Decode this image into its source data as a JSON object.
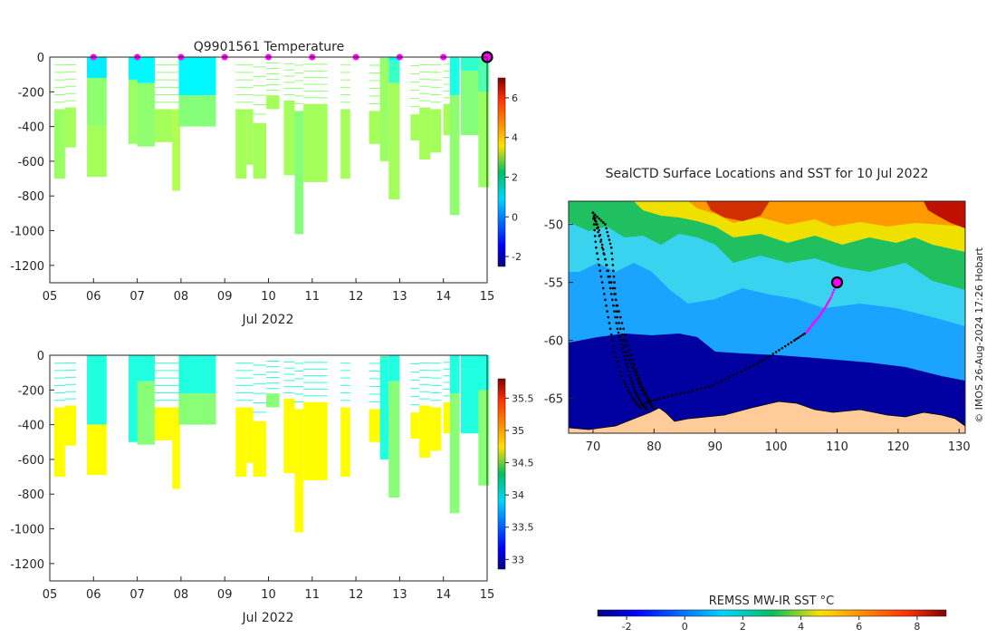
{
  "chart_data": [
    {
      "id": "temperature",
      "type": "heatmap",
      "title": "Q9901561  Temperature",
      "xlabel": "Jul 2022",
      "xticks": [
        "05",
        "06",
        "07",
        "08",
        "09",
        "10",
        "11",
        "12",
        "13",
        "14",
        "15"
      ],
      "xlim": [
        5,
        15
      ],
      "ylim": [
        -1300,
        0
      ],
      "yticks": [
        0,
        -200,
        -400,
        -600,
        -800,
        -1000,
        -1200
      ],
      "colorbar": {
        "min": -2.5,
        "max": 7,
        "ticks": [
          -2,
          0,
          2,
          4,
          6
        ]
      },
      "surface_markers_day": [
        6,
        7,
        8,
        9,
        10,
        11,
        12,
        13,
        14
      ],
      "latest_marker_day": 15,
      "profiles": [
        {
          "day": 5.1,
          "width": 0.25,
          "max_depth": 700,
          "layers": [
            [
              0,
              300,
              null
            ],
            [
              300,
              700,
              2.5
            ]
          ]
        },
        {
          "day": 5.35,
          "width": 0.25,
          "max_depth": 520,
          "layers": [
            [
              0,
              290,
              null
            ],
            [
              290,
              520,
              2.6
            ]
          ]
        },
        {
          "day": 5.85,
          "width": 0.45,
          "max_depth": 690,
          "layers": [
            [
              0,
              120,
              0.9
            ],
            [
              120,
              400,
              2.4
            ],
            [
              400,
              690,
              2.6
            ]
          ]
        },
        {
          "day": 6.8,
          "width": 0.28,
          "max_depth": 500,
          "layers": [
            [
              0,
              130,
              1.0
            ],
            [
              130,
              500,
              2.5
            ]
          ]
        },
        {
          "day": 7.0,
          "width": 0.4,
          "max_depth": 515,
          "layers": [
            [
              0,
              150,
              1.0
            ],
            [
              150,
              515,
              2.4
            ]
          ]
        },
        {
          "day": 7.4,
          "width": 0.4,
          "max_depth": 490,
          "layers": [
            [
              0,
              300,
              null
            ],
            [
              300,
              490,
              2.6
            ]
          ]
        },
        {
          "day": 7.8,
          "width": 0.18,
          "max_depth": 770,
          "layers": [
            [
              0,
              300,
              null
            ],
            [
              300,
              770,
              2.7
            ]
          ]
        },
        {
          "day": 7.95,
          "width": 0.85,
          "max_depth": 400,
          "layers": [
            [
              0,
              220,
              1.0
            ],
            [
              220,
              400,
              2.3
            ]
          ]
        },
        {
          "day": 9.25,
          "width": 0.25,
          "max_depth": 700,
          "layers": [
            [
              0,
              300,
              null
            ],
            [
              300,
              700,
              2.6
            ]
          ]
        },
        {
          "day": 9.5,
          "width": 0.15,
          "max_depth": 620,
          "layers": [
            [
              0,
              300,
              null
            ],
            [
              300,
              620,
              2.6
            ]
          ]
        },
        {
          "day": 9.65,
          "width": 0.3,
          "max_depth": 700,
          "layers": [
            [
              0,
              380,
              null
            ],
            [
              380,
              700,
              2.6
            ]
          ]
        },
        {
          "day": 9.95,
          "width": 0.3,
          "max_depth": 300,
          "layers": [
            [
              0,
              220,
              null
            ],
            [
              220,
              300,
              2.6
            ]
          ]
        },
        {
          "day": 10.35,
          "width": 0.25,
          "max_depth": 680,
          "layers": [
            [
              0,
              250,
              null
            ],
            [
              250,
              680,
              2.6
            ]
          ]
        },
        {
          "day": 10.6,
          "width": 0.2,
          "max_depth": 1020,
          "layers": [
            [
              0,
              310,
              null
            ],
            [
              310,
              1020,
              2.3
            ]
          ]
        },
        {
          "day": 10.8,
          "width": 0.55,
          "max_depth": 720,
          "layers": [
            [
              0,
              270,
              null
            ],
            [
              270,
              720,
              2.6
            ]
          ]
        },
        {
          "day": 11.65,
          "width": 0.22,
          "max_depth": 700,
          "layers": [
            [
              0,
              300,
              null
            ],
            [
              300,
              700,
              2.6
            ]
          ]
        },
        {
          "day": 12.3,
          "width": 0.28,
          "max_depth": 500,
          "layers": [
            [
              0,
              310,
              null
            ],
            [
              310,
              500,
              2.6
            ]
          ]
        },
        {
          "day": 12.55,
          "width": 0.2,
          "max_depth": 600,
          "layers": [
            [
              0,
              30,
              null
            ],
            [
              30,
              600,
              2.5
            ]
          ]
        },
        {
          "day": 12.75,
          "width": 0.25,
          "max_depth": 820,
          "layers": [
            [
              0,
              20,
              1.0
            ],
            [
              20,
              150,
              1.6
            ],
            [
              150,
              820,
              2.6
            ]
          ]
        },
        {
          "day": 13.25,
          "width": 0.2,
          "max_depth": 480,
          "layers": [
            [
              0,
              330,
              null
            ],
            [
              330,
              480,
              2.6
            ]
          ]
        },
        {
          "day": 13.45,
          "width": 0.25,
          "max_depth": 590,
          "layers": [
            [
              0,
              290,
              null
            ],
            [
              290,
              590,
              2.6
            ]
          ]
        },
        {
          "day": 13.7,
          "width": 0.25,
          "max_depth": 550,
          "layers": [
            [
              0,
              300,
              null
            ],
            [
              300,
              550,
              2.6
            ]
          ]
        },
        {
          "day": 14.0,
          "width": 0.3,
          "max_depth": 450,
          "layers": [
            [
              0,
              270,
              null
            ],
            [
              270,
              450,
              2.6
            ]
          ]
        },
        {
          "day": 14.15,
          "width": 0.22,
          "max_depth": 910,
          "layers": [
            [
              0,
              220,
              1.3
            ],
            [
              220,
              910,
              2.4
            ]
          ]
        },
        {
          "day": 14.4,
          "width": 0.6,
          "max_depth": 450,
          "layers": [
            [
              0,
              80,
              1.5
            ],
            [
              80,
              450,
              2.3
            ]
          ]
        },
        {
          "day": 14.8,
          "width": 0.25,
          "max_depth": 750,
          "layers": [
            [
              0,
              200,
              1.8
            ],
            [
              200,
              750,
              2.5
            ]
          ]
        }
      ]
    },
    {
      "id": "salinity",
      "type": "heatmap",
      "title": "",
      "xlabel": "Jul 2022",
      "xticks": [
        "05",
        "06",
        "07",
        "08",
        "09",
        "10",
        "11",
        "12",
        "13",
        "14",
        "15"
      ],
      "xlim": [
        5,
        15
      ],
      "ylim": [
        -1300,
        0
      ],
      "yticks": [
        0,
        -200,
        -400,
        -600,
        -800,
        -1000,
        -1200
      ],
      "colorbar": {
        "min": 32.85,
        "max": 35.8,
        "ticks": [
          33,
          33.5,
          34,
          34.5,
          35,
          35.5
        ]
      }
    },
    {
      "id": "sst_map",
      "type": "map",
      "title": "SealCTD Surface Locations and SST for 10 Jul 2022",
      "xlim": [
        66,
        131
      ],
      "ylim": [
        -68,
        -48
      ],
      "xticks": [
        70,
        80,
        90,
        100,
        110,
        120,
        130
      ],
      "yticks": [
        -50,
        -55,
        -60,
        -65
      ],
      "colorbar_label": "REMSS MW-IR SST °C",
      "colorbar": {
        "min": -3,
        "max": 9,
        "ticks": [
          -2,
          0,
          2,
          4,
          6,
          8
        ]
      },
      "latest_position": [
        110,
        -55
      ],
      "track_segments": [
        [
          [
            70,
            -49
          ],
          [
            71,
            -50.5
          ],
          [
            72,
            -53
          ],
          [
            73,
            -56
          ],
          [
            74,
            -59
          ],
          [
            75,
            -61
          ],
          [
            76,
            -63
          ],
          [
            77,
            -64.5
          ],
          [
            78,
            -65.5
          ],
          [
            79,
            -66
          ]
        ],
        [
          [
            70,
            -49
          ],
          [
            71,
            -51
          ],
          [
            72.5,
            -54
          ],
          [
            74,
            -57
          ],
          [
            75.5,
            -60
          ],
          [
            77,
            -62.5
          ],
          [
            78,
            -64
          ],
          [
            79,
            -65
          ],
          [
            80,
            -66
          ]
        ],
        [
          [
            70,
            -49
          ],
          [
            70.5,
            -52
          ],
          [
            71.5,
            -55
          ],
          [
            72.5,
            -58
          ],
          [
            73.5,
            -61
          ],
          [
            75,
            -63.5
          ],
          [
            76.5,
            -65
          ],
          [
            78,
            -66
          ]
        ],
        [
          [
            70,
            -49
          ],
          [
            72,
            -50
          ],
          [
            73,
            -52
          ],
          [
            73.5,
            -55
          ],
          [
            74,
            -58
          ],
          [
            75.5,
            -61
          ],
          [
            77,
            -63
          ],
          [
            78.5,
            -65
          ]
        ],
        [
          [
            78,
            -65.5
          ],
          [
            81,
            -65
          ],
          [
            85,
            -64.5
          ],
          [
            89,
            -64
          ],
          [
            93,
            -63
          ],
          [
            97,
            -62
          ],
          [
            100,
            -61
          ],
          [
            103,
            -60
          ],
          [
            105,
            -59.3
          ]
        ]
      ],
      "recent_segment": [
        [
          105,
          -59.3
        ],
        [
          106,
          -58.6
        ],
        [
          107,
          -58
        ],
        [
          108,
          -57.2
        ],
        [
          109,
          -56.3
        ],
        [
          110,
          -55
        ]
      ],
      "watermark": "© IMOS 26-Aug-2024 17:26 Hobart"
    }
  ]
}
